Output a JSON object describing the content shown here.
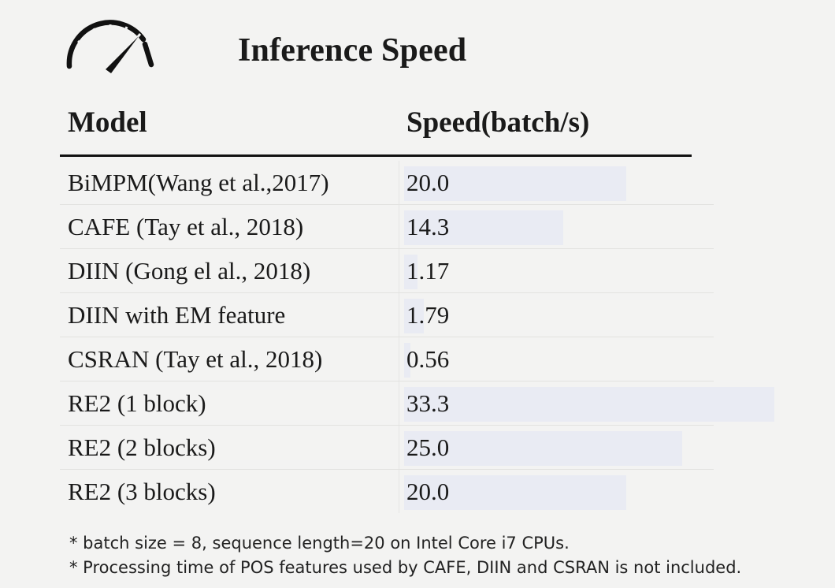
{
  "slide": {
    "title": "Inference Speed",
    "icon": "speedometer-icon"
  },
  "table": {
    "headers": {
      "model": "Model",
      "speed": "Speed(batch/s)"
    },
    "max_value": 33.3,
    "rows": [
      {
        "model": "BiMPM(Wang et al.,2017)",
        "speed": "20.0",
        "value": 20.0
      },
      {
        "model": "CAFE (Tay et al., 2018)",
        "speed": "14.3",
        "value": 14.3
      },
      {
        "model": "DIIN (Gong el al., 2018)",
        "speed": "1.17",
        "value": 1.17
      },
      {
        "model": "DIIN with EM feature",
        "speed": "1.79",
        "value": 1.79
      },
      {
        "model": "CSRAN (Tay et al., 2018)",
        "speed": "0.56",
        "value": 0.56
      },
      {
        "model": "RE2 (1 block)",
        "speed": "33.3",
        "value": 33.3
      },
      {
        "model": "RE2 (2 blocks)",
        "speed": "25.0",
        "value": 25.0
      },
      {
        "model": "RE2 (3 blocks)",
        "speed": "20.0",
        "value": 20.0
      }
    ]
  },
  "notes": [
    "* batch size = 8, sequence length=20 on Intel Core i7 CPUs.",
    "* Processing time of POS features used by CAFE, DIIN and CSRAN is not included."
  ],
  "colors": {
    "bar": "#e9ebf3",
    "rule": "#111111"
  }
}
